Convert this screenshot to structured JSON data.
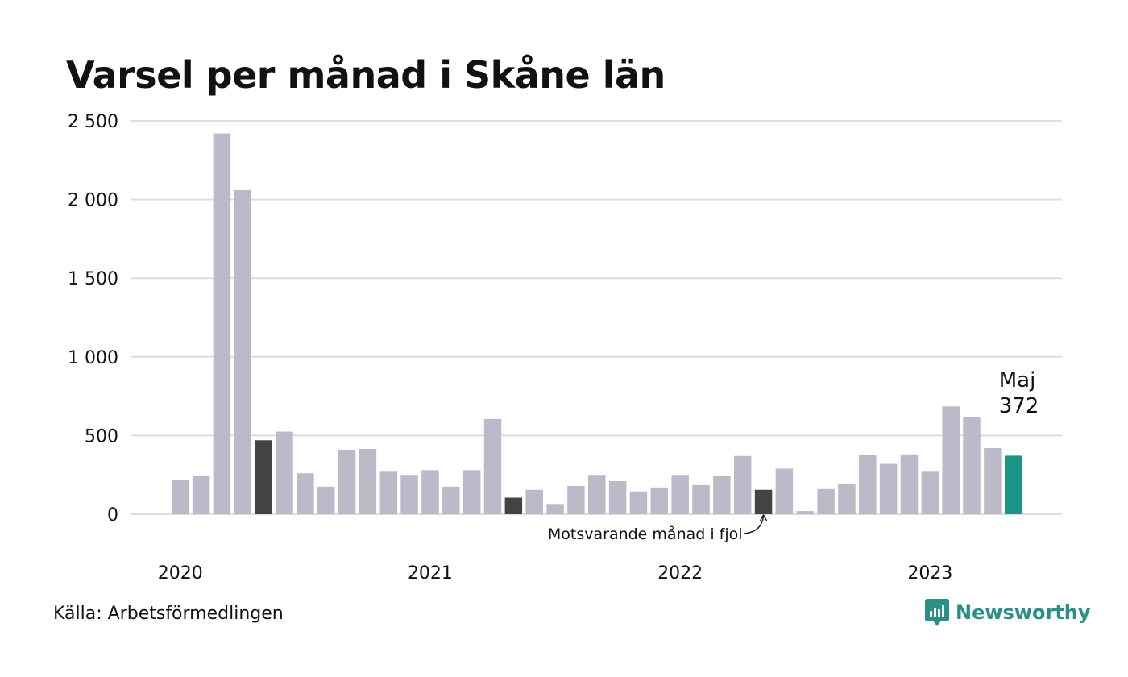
{
  "title": "Varsel per månad i Skåne län",
  "source": "Källa: Arbetsförmedlingen",
  "brand": {
    "name": "Newsworthy",
    "icon": "newsworthy-logo-icon"
  },
  "colors": {
    "normal": "#bcbac8",
    "same_month_last_year": "#444444",
    "latest": "#1a9688",
    "grid": "#dedde3",
    "brand": "#2a8f86"
  },
  "chart_data": {
    "type": "bar",
    "title": "Varsel per månad i Skåne län",
    "xlabel": "",
    "ylabel": "",
    "ylim": [
      0,
      2500
    ],
    "yticks": [
      0,
      500,
      1000,
      1500,
      2000,
      2500
    ],
    "ytick_labels": [
      "0",
      "500",
      "1 000",
      "1 500",
      "2 000",
      "2 500"
    ],
    "xtick_labels": [
      "2020",
      "2021",
      "2022",
      "2023"
    ],
    "xtick_months": [
      "2020-01",
      "2021-01",
      "2022-01",
      "2023-01"
    ],
    "grid": true,
    "categories": [
      "2020-01",
      "2020-02",
      "2020-03",
      "2020-04",
      "2020-05",
      "2020-06",
      "2020-07",
      "2020-08",
      "2020-09",
      "2020-10",
      "2020-11",
      "2020-12",
      "2021-01",
      "2021-02",
      "2021-03",
      "2021-04",
      "2021-05",
      "2021-06",
      "2021-07",
      "2021-08",
      "2021-09",
      "2021-10",
      "2021-11",
      "2021-12",
      "2022-01",
      "2022-02",
      "2022-03",
      "2022-04",
      "2022-05",
      "2022-06",
      "2022-07",
      "2022-08",
      "2022-09",
      "2022-10",
      "2022-11",
      "2022-12",
      "2023-01",
      "2023-02",
      "2023-03",
      "2023-04",
      "2023-05"
    ],
    "values": [
      220,
      245,
      2420,
      2060,
      470,
      525,
      260,
      175,
      410,
      415,
      270,
      250,
      280,
      175,
      280,
      605,
      105,
      155,
      65,
      180,
      250,
      210,
      145,
      170,
      250,
      185,
      245,
      370,
      155,
      290,
      20,
      160,
      190,
      375,
      320,
      380,
      270,
      685,
      620,
      420,
      372
    ],
    "highlight_same_month": [
      "2020-05",
      "2021-05",
      "2022-05"
    ],
    "highlight_latest": "2023-05",
    "annotations": {
      "latest_month": "Maj",
      "latest_value": "372",
      "previous_year": "Motsvarande månad i fjol"
    }
  }
}
